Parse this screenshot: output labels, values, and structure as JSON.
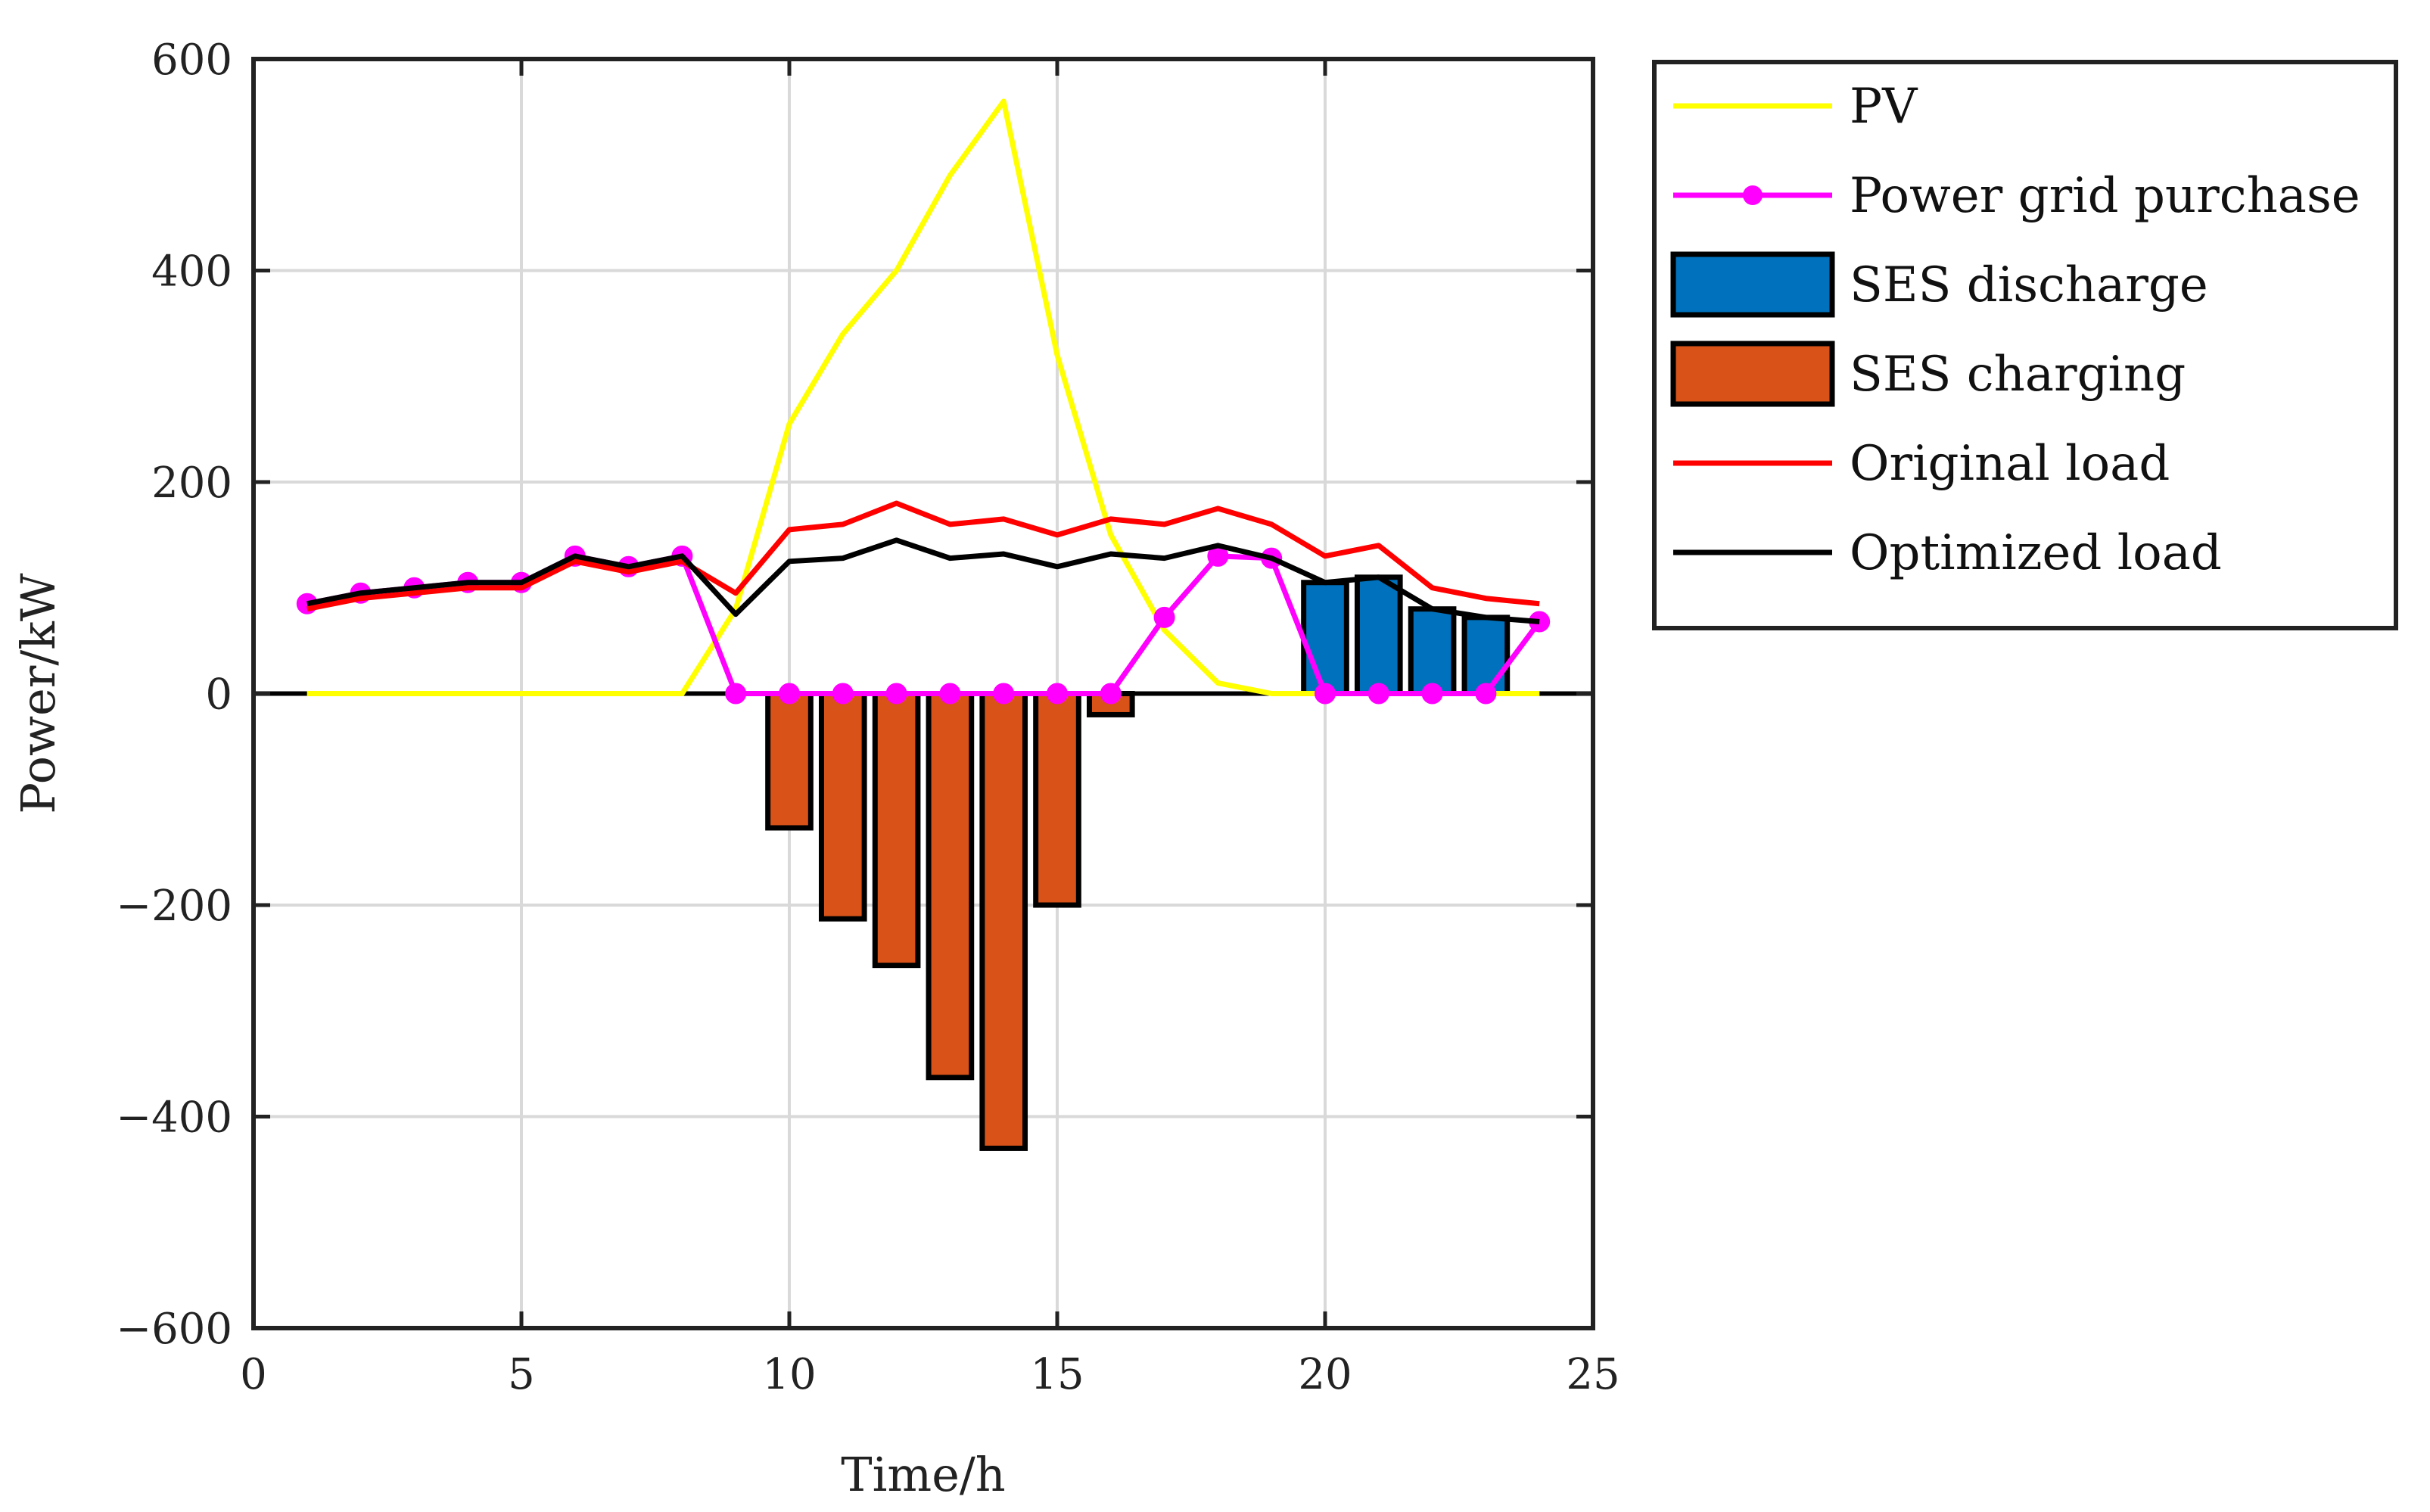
{
  "chart_data": {
    "type": "bar",
    "title": "",
    "xlabel": "Time/h",
    "ylabel": "Power/kW",
    "xlim": [
      0,
      25
    ],
    "ylim": [
      -600,
      600
    ],
    "xticks": [
      0,
      5,
      10,
      15,
      20,
      25
    ],
    "yticks": [
      -600,
      -400,
      -200,
      0,
      200,
      400,
      600
    ],
    "ytick_labels": [
      "−600",
      "−400",
      "−200",
      "0",
      "200",
      "400",
      "600"
    ],
    "grid": true,
    "legend_position": "outside-right",
    "x": [
      1,
      2,
      3,
      4,
      5,
      6,
      7,
      8,
      9,
      10,
      11,
      12,
      13,
      14,
      15,
      16,
      17,
      18,
      19,
      20,
      21,
      22,
      23,
      24
    ],
    "series": [
      {
        "name": "PV",
        "kind": "line",
        "color": "#ffff00",
        "dashed_at_zero": true,
        "values": [
          0,
          0,
          0,
          0,
          0,
          0,
          0,
          0,
          80,
          255,
          340,
          400,
          490,
          560,
          320,
          150,
          60,
          10,
          0,
          0,
          0,
          0,
          0,
          0
        ]
      },
      {
        "name": "Power grid purchase",
        "kind": "line-marker",
        "color": "#ff00ff",
        "values": [
          85,
          95,
          100,
          105,
          105,
          130,
          120,
          130,
          0,
          0,
          0,
          0,
          0,
          0,
          0,
          0,
          72,
          130,
          128,
          0,
          0,
          0,
          0,
          68
        ]
      },
      {
        "name": "SES discharge",
        "kind": "bar",
        "color": "#0072bd",
        "values": [
          0,
          0,
          0,
          0,
          0,
          0,
          0,
          0,
          0,
          0,
          0,
          0,
          0,
          0,
          0,
          0,
          0,
          0,
          0,
          105,
          110,
          80,
          72,
          0
        ]
      },
      {
        "name": "SES charging",
        "kind": "bar",
        "color": "#d95319",
        "values": [
          0,
          0,
          0,
          0,
          0,
          0,
          0,
          0,
          0,
          -127,
          -213,
          -257,
          -363,
          -430,
          -200,
          -20,
          0,
          0,
          0,
          0,
          0,
          0,
          0,
          0
        ]
      },
      {
        "name": "Original load",
        "kind": "line",
        "color": "#ff0000",
        "values": [
          80,
          90,
          95,
          100,
          100,
          125,
          115,
          125,
          95,
          155,
          160,
          180,
          160,
          165,
          150,
          165,
          160,
          175,
          160,
          130,
          140,
          100,
          90,
          85
        ]
      },
      {
        "name": "Optimized load",
        "kind": "line",
        "color": "#000000",
        "values": [
          85,
          95,
          100,
          105,
          105,
          130,
          120,
          130,
          75,
          125,
          128,
          145,
          128,
          132,
          120,
          132,
          128,
          140,
          128,
          105,
          110,
          80,
          72,
          68
        ]
      }
    ]
  }
}
